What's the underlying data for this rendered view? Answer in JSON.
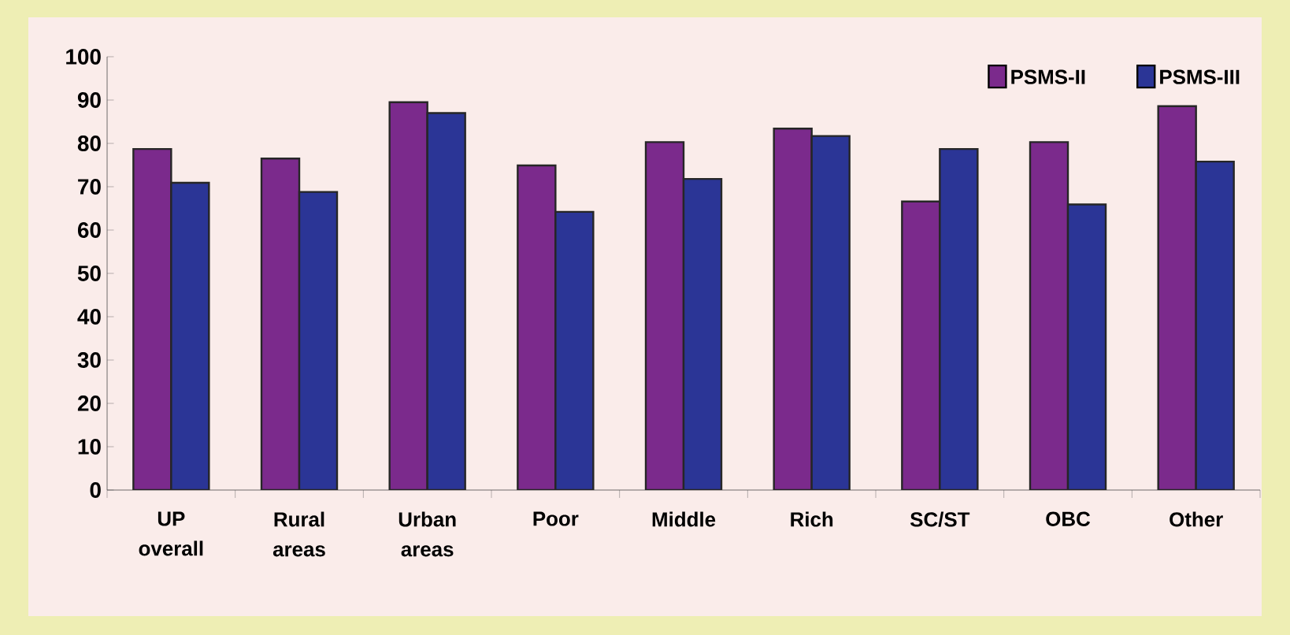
{
  "chart_data": {
    "type": "bar",
    "categories": [
      "UP overall",
      "Rural areas",
      "Urban areas",
      "Poor",
      "Middle",
      "Rich",
      "SC/ST",
      "OBC",
      "Other"
    ],
    "series": [
      {
        "name": "PSMS-II",
        "color": "#7b2a8c",
        "values": [
          78.7,
          76.5,
          89.5,
          74.9,
          80.3,
          83.4,
          66.6,
          80.3,
          88.6
        ]
      },
      {
        "name": "PSMS-III",
        "color": "#2b3596",
        "values": [
          70.9,
          68.8,
          87.0,
          64.2,
          71.8,
          81.7,
          78.7,
          65.9,
          75.8
        ]
      }
    ],
    "ylim": [
      0,
      100
    ],
    "yticks": [
      0,
      10,
      20,
      30,
      40,
      50,
      60,
      70,
      80,
      90,
      100
    ],
    "grid": false,
    "legend": "top right"
  }
}
